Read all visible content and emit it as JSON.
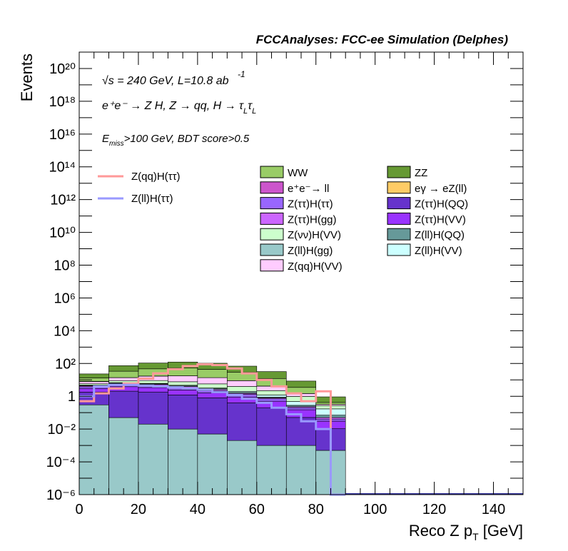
{
  "header": {
    "title": "FCCAnalyses: FCC-ee Simulation (Delphes)"
  },
  "annotations": {
    "line1": "√s = 240 GeV, L=10.8 ab",
    "line1_sup": "-1",
    "line2": "e⁺e⁻ → Z H, Z → qq, H → τ",
    "line2_sub1": "L",
    "line2_tau2": "τ",
    "line2_sub2": "L",
    "line3_pre": "E",
    "line3_sub": "miss",
    "line3_post": ">100 GeV, BDT score>0.5"
  },
  "chart_data": {
    "type": "area",
    "title": "FCCAnalyses: FCC-ee Simulation (Delphes)",
    "xlabel": "Reco Z p_T [GeV]",
    "ylabel": "Events",
    "log_y": true,
    "xlim": [
      0,
      150
    ],
    "ylim": [
      1e-06,
      1e+21
    ],
    "x_ticks": [
      0,
      20,
      40,
      60,
      80,
      100,
      120,
      140
    ],
    "y_ticks": [
      {
        "value": 1e-06,
        "label": "10⁻⁶"
      },
      {
        "value": 0.0001,
        "label": "10⁻⁴"
      },
      {
        "value": 0.01,
        "label": "10⁻²"
      },
      {
        "value": 1,
        "label": "1"
      },
      {
        "value": 100.0,
        "label": "10²"
      },
      {
        "value": 10000.0,
        "label": "10⁴"
      },
      {
        "value": 1000000.0,
        "label": "10⁶"
      },
      {
        "value": 100000000.0,
        "label": "10⁸"
      },
      {
        "value": 10000000000.0,
        "label": "10¹⁰"
      },
      {
        "value": 1000000000000.0,
        "label": "10¹²"
      },
      {
        "value": 100000000000000.0,
        "label": "10¹⁴"
      },
      {
        "value": 1e+16,
        "label": "10¹⁶"
      },
      {
        "value": 1e+18,
        "label": "10¹⁸"
      },
      {
        "value": 1e+20,
        "label": "10²⁰"
      }
    ],
    "stacked_x_edges": [
      0,
      10,
      20,
      30,
      40,
      50,
      60,
      70,
      80,
      90
    ],
    "stacked_series": [
      {
        "name": "Z(ll)H(gg)",
        "color": "#99c9c9",
        "values": [
          0.3,
          0.05,
          0.02,
          0.01,
          0.005,
          0.002,
          0.001,
          0.001,
          0.0005
        ]
      },
      {
        "name": "Z(ττ)H(QQ)",
        "color": "#6633cc",
        "values": [
          1.5,
          2.0,
          1.8,
          1.2,
          0.8,
          0.4,
          0.2,
          0.05,
          0.01
        ]
      },
      {
        "name": "Z(ττ)H(VV)",
        "color": "#9933ff",
        "values": [
          1.2,
          1.8,
          1.6,
          1.2,
          0.8,
          0.5,
          0.3,
          0.1,
          0.02
        ]
      },
      {
        "name": "Z(ττ)H(ττ)",
        "color": "#9966ff",
        "values": [
          0.8,
          1.2,
          1.1,
          0.9,
          0.6,
          0.4,
          0.2,
          0.05,
          0.01
        ]
      },
      {
        "name": "Z(ττ)H(gg)",
        "color": "#cc66ff",
        "values": [
          0.5,
          0.8,
          0.7,
          0.6,
          0.4,
          0.2,
          0.1,
          0.03,
          0.01
        ]
      },
      {
        "name": "Z(ll)H(QQ)",
        "color": "#669999",
        "values": [
          0.3,
          0.5,
          0.5,
          0.4,
          0.3,
          0.2,
          0.1,
          0.05,
          0.02
        ]
      },
      {
        "name": "Z(ll)H(VV)",
        "color": "#ccffff",
        "values": [
          0.2,
          0.4,
          0.4,
          0.4,
          0.3,
          0.3,
          0.3,
          0.2,
          0.1
        ]
      },
      {
        "name": "Z(νν)H(VV)",
        "color": "#ccffcc",
        "values": [
          1.0,
          2.0,
          3.0,
          3.0,
          2.5,
          2.0,
          1.0,
          0.5,
          0.1
        ]
      },
      {
        "name": "Z(qq)H(VV)",
        "color": "#ffccff",
        "values": [
          2.0,
          5.0,
          8.0,
          10.0,
          8.0,
          5.0,
          2.0,
          0.5,
          0.05
        ]
      },
      {
        "name": "e⁺e⁻→ ll",
        "color": "#cc55cc",
        "values": [
          0.3,
          0.1,
          0.05,
          0.02,
          0.01,
          0.005,
          0.002,
          0.001,
          0.0005
        ]
      },
      {
        "name": "eγ → eZ(ll)",
        "color": "#ffcc66",
        "values": [
          0.01,
          0.005,
          0.002,
          0.001,
          0.001,
          0.0005,
          0.0002,
          0.0001,
          0.0001
        ]
      },
      {
        "name": "WW",
        "color": "#99cc66",
        "values": [
          5.0,
          20.0,
          30.0,
          35.0,
          30.0,
          20.0,
          8.0,
          2.0,
          0.1
        ]
      },
      {
        "name": "ZZ",
        "color": "#669933",
        "values": [
          10.0,
          40.0,
          60.0,
          70.0,
          60.0,
          40.0,
          20.0,
          5.0,
          0.5
        ]
      }
    ],
    "signal_lines": [
      {
        "name": "Z(qq)H(ττ)",
        "color": "#ff9999",
        "x": [
          0,
          5,
          10,
          15,
          20,
          25,
          30,
          35,
          40,
          45,
          50,
          55,
          60,
          65,
          70,
          75,
          80,
          85
        ],
        "y": [
          0.5,
          1.5,
          3,
          6,
          12,
          25,
          45,
          70,
          90,
          80,
          50,
          25,
          10,
          4,
          1.5,
          0.5,
          2,
          1e-06
        ]
      },
      {
        "name": "Z(ll)H(ττ)",
        "color": "#9999ff",
        "x": [
          0,
          5,
          10,
          15,
          20,
          25,
          30,
          35,
          40,
          45,
          50,
          55,
          60,
          65,
          70,
          75,
          80,
          85
        ],
        "y": [
          1,
          4,
          5,
          5,
          4.5,
          4,
          3.5,
          3,
          2.5,
          1.8,
          1.2,
          0.7,
          0.4,
          0.2,
          0.08,
          0.03,
          0.01,
          1e-06
        ]
      }
    ],
    "legend_left": [
      "Z(qq)H(ττ)",
      "Z(ll)H(ττ)"
    ],
    "legend_col1": [
      "WW",
      "e⁺e⁻→ ll",
      "Z(ττ)H(ττ)",
      "Z(ττ)H(gg)",
      "Z(νν)H(VV)",
      "Z(ll)H(gg)",
      "Z(qq)H(VV)"
    ],
    "legend_col2": [
      "ZZ",
      "eγ → eZ(ll)",
      "Z(ττ)H(QQ)",
      "Z(ττ)H(VV)",
      "Z(ll)H(QQ)",
      "Z(ll)H(VV)"
    ],
    "legend_colors": {
      "WW": "#99cc66",
      "e⁺e⁻→ ll": "#cc55cc",
      "Z(ττ)H(ττ)": "#9966ff",
      "Z(ττ)H(gg)": "#cc66ff",
      "Z(νν)H(VV)": "#ccffcc",
      "Z(ll)H(gg)": "#99c9c9",
      "Z(qq)H(VV)": "#ffccff",
      "ZZ": "#669933",
      "eγ → eZ(ll)": "#ffcc66",
      "Z(ττ)H(QQ)": "#6633cc",
      "Z(ττ)H(VV)": "#9933ff",
      "Z(ll)H(QQ)": "#669999",
      "Z(ll)H(VV)": "#ccffff"
    },
    "grid": false,
    "legend_placement": "top"
  }
}
